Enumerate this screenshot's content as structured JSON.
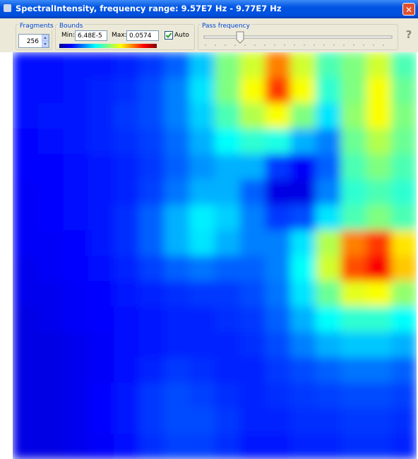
{
  "window": {
    "title": "SpectralIntensity, frequency range: 9.57E7 Hz - 9.77E7 Hz",
    "close": "✕"
  },
  "toolbar": {
    "fragments": {
      "label": "Fragments",
      "value": 256
    },
    "bounds": {
      "label": "Bounds",
      "min_label": "Min:",
      "min": {
        "value": 6.48e-05,
        "label": "6.48E-5"
      },
      "max_label": "Max:",
      "max": 0.0574,
      "auto_label": "Auto",
      "auto": true
    },
    "pass_frequency": {
      "label": "Pass frequency"
    },
    "help": "?"
  },
  "heatmap": {
    "values": [
      [
        0.008,
        0.008,
        0.0086,
        0.0086,
        0.0092,
        0.0103,
        0.0126,
        0.0184,
        0.0287,
        0.0333,
        0.0431,
        0.0333,
        0.0258,
        0.0287,
        0.0333,
        0.0258
      ],
      [
        0.008,
        0.008,
        0.0086,
        0.0092,
        0.0098,
        0.0115,
        0.0144,
        0.0201,
        0.0287,
        0.0356,
        0.0471,
        0.0356,
        0.0241,
        0.0287,
        0.0356,
        0.0276
      ],
      [
        0.008,
        0.0086,
        0.0086,
        0.0092,
        0.0103,
        0.0115,
        0.0144,
        0.0189,
        0.0258,
        0.0316,
        0.0356,
        0.0287,
        0.0201,
        0.0298,
        0.0356,
        0.0287
      ],
      [
        0.0075,
        0.008,
        0.0086,
        0.0092,
        0.0098,
        0.0109,
        0.0132,
        0.0172,
        0.0218,
        0.0241,
        0.023,
        0.0172,
        0.0144,
        0.0276,
        0.0316,
        0.0276
      ],
      [
        0.0075,
        0.0075,
        0.008,
        0.0086,
        0.0092,
        0.0103,
        0.0126,
        0.0155,
        0.0172,
        0.0172,
        0.0103,
        0.0069,
        0.0126,
        0.0258,
        0.0287,
        0.0258
      ],
      [
        0.0069,
        0.0075,
        0.008,
        0.0086,
        0.0092,
        0.0109,
        0.0138,
        0.0172,
        0.0172,
        0.0126,
        0.0057,
        0.0057,
        0.0144,
        0.0241,
        0.0258,
        0.0241
      ],
      [
        0.0069,
        0.0075,
        0.008,
        0.0086,
        0.0098,
        0.0126,
        0.0172,
        0.0207,
        0.0189,
        0.0144,
        0.0103,
        0.0115,
        0.0201,
        0.0258,
        0.0287,
        0.0258
      ],
      [
        0.0069,
        0.0069,
        0.0075,
        0.0086,
        0.0098,
        0.0126,
        0.0172,
        0.0201,
        0.0172,
        0.0144,
        0.0144,
        0.0201,
        0.0316,
        0.0431,
        0.0471,
        0.0373
      ],
      [
        0.0063,
        0.0069,
        0.0075,
        0.008,
        0.0092,
        0.0109,
        0.0126,
        0.0138,
        0.0126,
        0.0126,
        0.0144,
        0.0218,
        0.0333,
        0.0459,
        0.0505,
        0.039
      ],
      [
        0.0063,
        0.0063,
        0.0069,
        0.0075,
        0.0086,
        0.0092,
        0.0098,
        0.0103,
        0.0103,
        0.0115,
        0.0138,
        0.0201,
        0.0276,
        0.0344,
        0.0356,
        0.0298
      ],
      [
        0.0057,
        0.0063,
        0.0069,
        0.0075,
        0.008,
        0.0086,
        0.0092,
        0.0092,
        0.0098,
        0.0103,
        0.0126,
        0.0172,
        0.0218,
        0.0241,
        0.0241,
        0.0218
      ],
      [
        0.0057,
        0.0057,
        0.0063,
        0.0069,
        0.008,
        0.0086,
        0.0092,
        0.0092,
        0.0092,
        0.0098,
        0.0115,
        0.0144,
        0.0172,
        0.0184,
        0.0184,
        0.0172
      ],
      [
        0.0057,
        0.0057,
        0.0063,
        0.0069,
        0.008,
        0.0092,
        0.0103,
        0.0098,
        0.0092,
        0.0092,
        0.0103,
        0.0115,
        0.0126,
        0.0138,
        0.0138,
        0.0126
      ],
      [
        0.0057,
        0.0057,
        0.0063,
        0.0075,
        0.0086,
        0.0103,
        0.0115,
        0.0109,
        0.0098,
        0.0092,
        0.0098,
        0.0103,
        0.0109,
        0.0115,
        0.0115,
        0.0109
      ],
      [
        0.0057,
        0.0057,
        0.0063,
        0.0075,
        0.0086,
        0.0103,
        0.0115,
        0.0115,
        0.0103,
        0.0092,
        0.0092,
        0.0098,
        0.0098,
        0.0103,
        0.0103,
        0.0098
      ],
      [
        0.0057,
        0.0057,
        0.0063,
        0.0069,
        0.008,
        0.0098,
        0.0109,
        0.0109,
        0.0098,
        0.0086,
        0.0086,
        0.0092,
        0.0092,
        0.0098,
        0.0098,
        0.0092
      ]
    ]
  }
}
